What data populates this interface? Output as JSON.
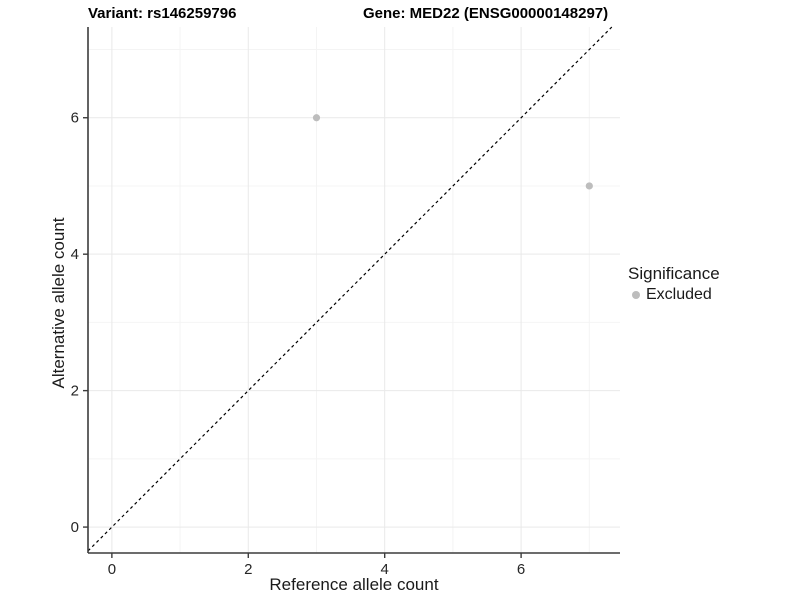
{
  "title": {
    "variant": "Variant: rs146259796",
    "gene": "Gene: MED22 (ENSG00000148297)"
  },
  "legend": {
    "title": "Significance",
    "items": [
      {
        "label": "Excluded",
        "color": "#bdbdbd"
      }
    ]
  },
  "chart_data": {
    "type": "scatter",
    "title": "Variant: rs146259796   Gene: MED22 (ENSG00000148297)",
    "xlabel": "Reference allele count",
    "ylabel": "Alternative allele count",
    "xlim": [
      -0.35,
      7.45
    ],
    "ylim": [
      -0.38,
      7.33
    ],
    "xticks": [
      0,
      2,
      4,
      6
    ],
    "yticks": [
      0,
      2,
      4,
      6
    ],
    "minor_gridlines": [
      1,
      3,
      5,
      7
    ],
    "grid": true,
    "legend_position": "right",
    "series": [
      {
        "name": "Excluded",
        "color": "#bdbdbd",
        "points": [
          {
            "x": 3,
            "y": 6
          },
          {
            "x": 7,
            "y": 5
          }
        ]
      }
    ],
    "reference_line": {
      "type": "identity",
      "style": "dashed",
      "color": "#000000"
    },
    "colors": {
      "grid_major": "#e9e9e9",
      "grid_minor": "#f4f4f4",
      "axis_line": "#3c3c3c",
      "tick_label": "#262626"
    }
  }
}
